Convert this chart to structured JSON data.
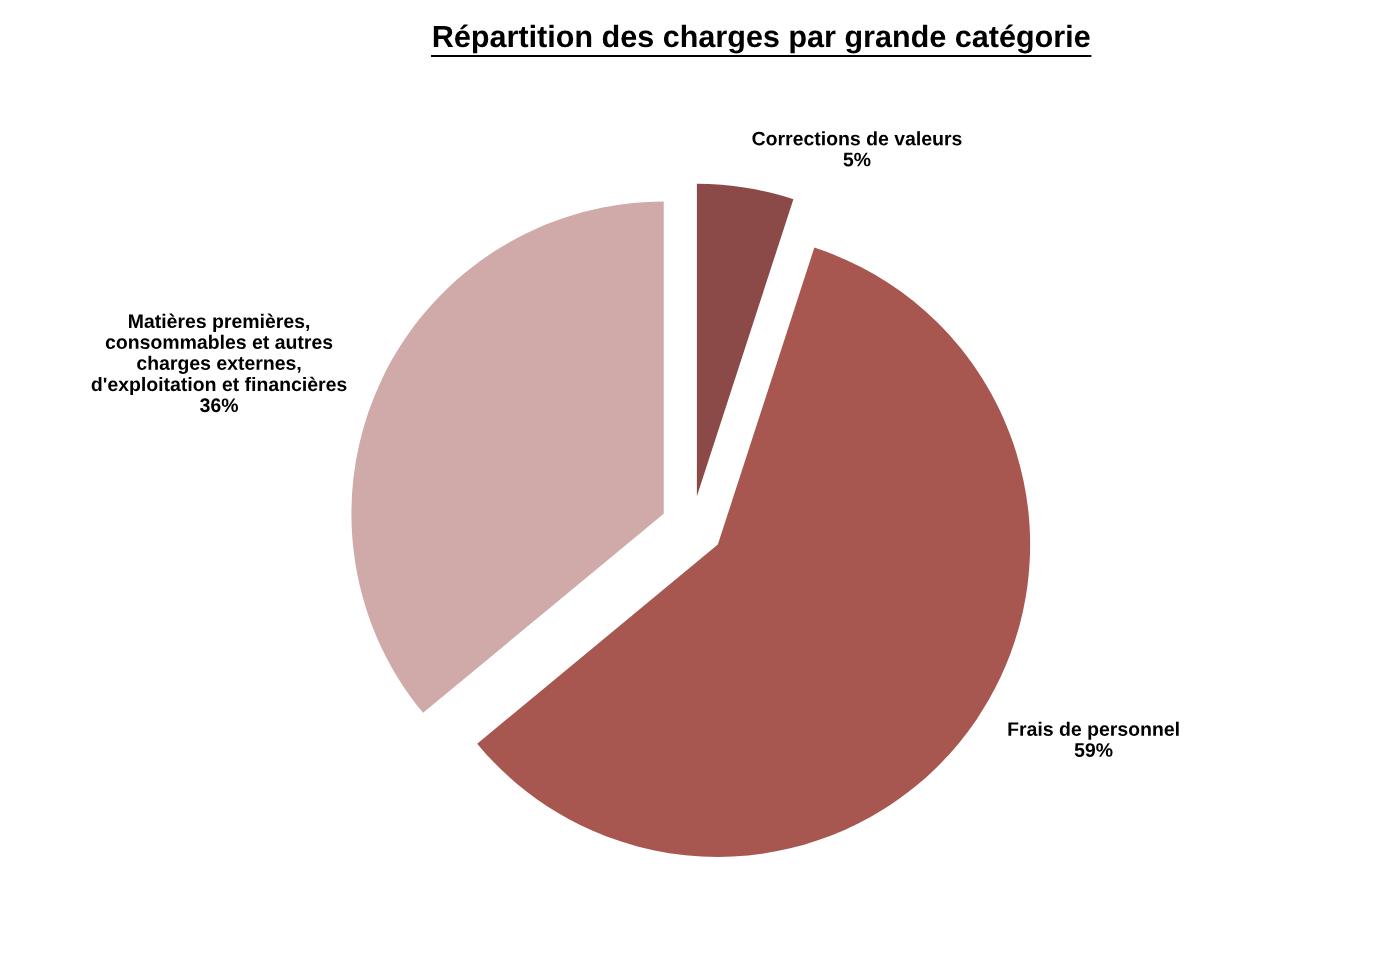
{
  "chart_data": {
    "type": "pie",
    "title": "Répartition des charges par grande catégorie",
    "categories": [
      "Corrections de valeurs",
      "Frais de personnel",
      "Matières premières,\nconsommables et autres\ncharges externes,\nd'exploitation et financières"
    ],
    "values": [
      5,
      59,
      36
    ],
    "colors": [
      "#8b4a47",
      "#a85750",
      "#cfaaa9"
    ],
    "value_labels": [
      "5%",
      "59%",
      "36%"
    ]
  }
}
